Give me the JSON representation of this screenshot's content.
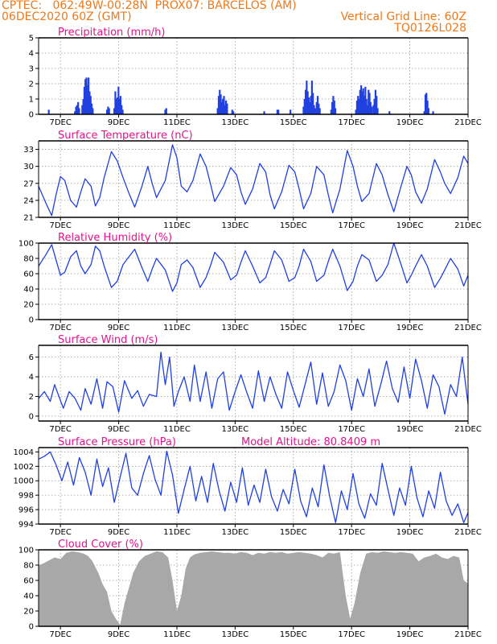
{
  "header": {
    "line1": "CPTEC:   062:49W-00:28N  PROX07: BARCELOS (AM)",
    "line2": "06DEC2020 60Z (GMT)",
    "grid_note": "Vertical Grid Line: 60Z",
    "code": "TQ0126L028"
  },
  "colors": {
    "header": "#f07818",
    "title": "#e0148c",
    "line": "#2040e0",
    "bar": "#2040e0",
    "cloud": "#a8a8a8"
  },
  "chart_data": [
    {
      "id": "precip",
      "type": "bar",
      "title": "Precipitation (mm/h)",
      "ylim": [
        0,
        5
      ],
      "yticks": [
        0,
        1,
        2,
        3,
        4,
        5
      ],
      "xlim": [
        6.25,
        21.0
      ],
      "xticks": [
        "7DEC",
        "9DEC",
        "11DEC",
        "13DEC",
        "15DEC",
        "17DEC",
        "19DEC",
        "21DEC"
      ],
      "bursts": [
        {
          "t": 6.6,
          "v": [
            0.3
          ]
        },
        {
          "t": 7.5,
          "v": [
            0.2,
            0.5,
            0.6,
            0.8,
            0.4
          ]
        },
        {
          "t": 7.75,
          "v": [
            0.6,
            1.0,
            1.8,
            2.3,
            2.4,
            1.9,
            2.4,
            1.5,
            1.2,
            0.7,
            0.4
          ]
        },
        {
          "t": 8.6,
          "v": [
            0.3,
            0.5,
            0.4
          ]
        },
        {
          "t": 8.85,
          "v": [
            0.4,
            1.5,
            1.0,
            1.1,
            1.8,
            1.0,
            1.2,
            0.6,
            0.3
          ]
        },
        {
          "t": 10.6,
          "v": [
            0.3,
            0.4
          ]
        },
        {
          "t": 12.4,
          "v": [
            0.4,
            1.2,
            1.6,
            1.3,
            0.8,
            1.0,
            1.2,
            0.6,
            0.9,
            0.7
          ]
        },
        {
          "t": 12.9,
          "v": [
            0.3,
            0.2
          ]
        },
        {
          "t": 14.0,
          "v": [
            0.2
          ]
        },
        {
          "t": 14.45,
          "v": [
            0.3,
            0.3
          ]
        },
        {
          "t": 14.9,
          "v": [
            0.3
          ]
        },
        {
          "t": 15.35,
          "v": [
            0.5,
            1.0,
            1.6,
            2.2,
            1.5,
            1.1,
            0.8,
            1.2,
            2.2,
            1.4,
            0.6,
            0.4
          ]
        },
        {
          "t": 15.8,
          "v": [
            0.8,
            1.2,
            0.7,
            0.4
          ]
        },
        {
          "t": 16.3,
          "v": [
            0.3,
            0.8,
            1.2,
            0.9,
            0.4
          ]
        },
        {
          "t": 17.15,
          "v": [
            0.3,
            0.9,
            1.2,
            1.0,
            1.6,
            1.9,
            1.5,
            1.7,
            1.2,
            1.8,
            1.0,
            0.6,
            1.6,
            1.4,
            0.8,
            0.5
          ]
        },
        {
          "t": 17.75,
          "v": [
            0.6,
            1.0,
            1.6,
            1.2,
            0.4
          ]
        },
        {
          "t": 18.3,
          "v": [
            0.2
          ]
        },
        {
          "t": 19.5,
          "v": [
            0.2,
            1.3,
            1.4,
            0.9,
            0.4
          ]
        },
        {
          "t": 19.8,
          "v": [
            0.2
          ]
        }
      ]
    },
    {
      "id": "temp",
      "type": "line",
      "title": "Surface Temperature (nC)",
      "ylim": [
        21,
        34.5
      ],
      "yticks": [
        21,
        24,
        27,
        30,
        33
      ],
      "xlim": [
        6.25,
        21.0
      ],
      "xticks": [
        "7DEC",
        "9DEC",
        "11DEC",
        "13DEC",
        "15DEC",
        "17DEC",
        "19DEC",
        "21DEC"
      ],
      "t": [
        6.25,
        6.5,
        6.7,
        6.85,
        7.0,
        7.15,
        7.35,
        7.55,
        7.7,
        7.85,
        8.05,
        8.2,
        8.35,
        8.5,
        8.75,
        8.95,
        9.15,
        9.35,
        9.55,
        9.8,
        10.0,
        10.15,
        10.3,
        10.6,
        10.85,
        11.0,
        11.15,
        11.35,
        11.55,
        11.8,
        12.0,
        12.15,
        12.3,
        12.6,
        12.85,
        13.05,
        13.2,
        13.35,
        13.6,
        13.85,
        14.05,
        14.2,
        14.35,
        14.6,
        14.85,
        15.05,
        15.2,
        15.35,
        15.6,
        15.8,
        16.05,
        16.2,
        16.35,
        16.6,
        16.85,
        17.05,
        17.2,
        17.35,
        17.6,
        17.85,
        18.05,
        18.25,
        18.45,
        18.7,
        18.9,
        19.05,
        19.2,
        19.4,
        19.6,
        19.85,
        20.05,
        20.2,
        20.4,
        20.65,
        20.85,
        21.0
      ],
      "v": [
        26.5,
        23.5,
        21.3,
        25.0,
        28.2,
        27.5,
        24.0,
        22.8,
        25.5,
        27.8,
        26.5,
        23.0,
        24.5,
        28.0,
        32.6,
        31.0,
        28.0,
        25.3,
        22.8,
        26.5,
        30.0,
        27.0,
        24.5,
        27.5,
        33.8,
        31.5,
        26.5,
        25.5,
        27.5,
        32.2,
        30.0,
        27.0,
        23.8,
        26.5,
        29.8,
        28.5,
        25.5,
        23.3,
        26.0,
        30.5,
        29.0,
        25.0,
        22.5,
        25.5,
        30.2,
        29.0,
        26.0,
        22.5,
        25.2,
        30.0,
        28.5,
        25.0,
        21.8,
        26.0,
        32.8,
        30.0,
        26.5,
        23.8,
        25.2,
        30.5,
        28.5,
        25.0,
        22.0,
        26.5,
        30.0,
        28.5,
        25.5,
        23.5,
        26.0,
        31.2,
        29.0,
        27.0,
        25.2,
        28.0,
        31.8,
        30.5
      ]
    },
    {
      "id": "rh",
      "type": "line",
      "title": "Relative Humidity (%)",
      "ylim": [
        0,
        100
      ],
      "yticks": [
        0,
        20,
        40,
        60,
        80,
        100
      ],
      "xlim": [
        6.25,
        21.0
      ],
      "xticks": [
        "7DEC",
        "9DEC",
        "11DEC",
        "13DEC",
        "15DEC",
        "17DEC",
        "19DEC",
        "21DEC"
      ],
      "t": [
        6.25,
        6.5,
        6.7,
        6.85,
        7.0,
        7.15,
        7.35,
        7.55,
        7.7,
        7.85,
        8.05,
        8.2,
        8.35,
        8.5,
        8.75,
        8.95,
        9.15,
        9.35,
        9.55,
        9.8,
        10.0,
        10.15,
        10.3,
        10.6,
        10.85,
        11.0,
        11.15,
        11.35,
        11.55,
        11.8,
        12.0,
        12.15,
        12.3,
        12.6,
        12.85,
        13.05,
        13.2,
        13.35,
        13.6,
        13.85,
        14.05,
        14.2,
        14.35,
        14.6,
        14.85,
        15.05,
        15.2,
        15.35,
        15.6,
        15.8,
        16.05,
        16.2,
        16.35,
        16.6,
        16.85,
        17.05,
        17.2,
        17.35,
        17.6,
        17.85,
        18.05,
        18.25,
        18.45,
        18.7,
        18.9,
        19.05,
        19.2,
        19.4,
        19.6,
        19.85,
        20.05,
        20.2,
        20.4,
        20.65,
        20.85,
        21.0
      ],
      "v": [
        70,
        85,
        98,
        78,
        58,
        62,
        82,
        90,
        70,
        60,
        72,
        96,
        90,
        70,
        42,
        50,
        72,
        82,
        92,
        68,
        50,
        66,
        80,
        65,
        37,
        48,
        72,
        78,
        68,
        42,
        55,
        70,
        88,
        75,
        52,
        58,
        75,
        90,
        70,
        48,
        55,
        72,
        90,
        78,
        50,
        55,
        70,
        92,
        76,
        50,
        58,
        76,
        92,
        70,
        38,
        50,
        70,
        85,
        78,
        50,
        58,
        72,
        100,
        72,
        48,
        58,
        70,
        85,
        70,
        42,
        54,
        65,
        80,
        66,
        44,
        58
      ]
    },
    {
      "id": "wind",
      "type": "line",
      "title": "Surface Wind (m/s)",
      "ylim": [
        -0.5,
        7.2
      ],
      "yticks": [
        0,
        2,
        4,
        6
      ],
      "xlim": [
        6.25,
        21.0
      ],
      "xticks": [
        "7DEC",
        "9DEC",
        "11DEC",
        "13DEC",
        "15DEC",
        "17DEC",
        "19DEC",
        "21DEC"
      ],
      "t": [
        6.25,
        6.45,
        6.65,
        6.8,
        6.95,
        7.1,
        7.3,
        7.5,
        7.7,
        7.85,
        8.05,
        8.25,
        8.45,
        8.6,
        8.8,
        9.0,
        9.2,
        9.45,
        9.65,
        9.85,
        10.05,
        10.3,
        10.45,
        10.6,
        10.75,
        10.9,
        11.05,
        11.25,
        11.45,
        11.6,
        11.8,
        12.0,
        12.2,
        12.4,
        12.6,
        12.8,
        13.0,
        13.2,
        13.4,
        13.6,
        13.8,
        14.0,
        14.2,
        14.4,
        14.6,
        14.8,
        15.0,
        15.2,
        15.4,
        15.6,
        15.8,
        16.0,
        16.2,
        16.4,
        16.6,
        16.8,
        17.0,
        17.2,
        17.4,
        17.6,
        17.8,
        18.0,
        18.2,
        18.4,
        18.6,
        18.8,
        19.0,
        19.2,
        19.4,
        19.6,
        19.8,
        20.0,
        20.2,
        20.4,
        20.6,
        20.8,
        21.0
      ],
      "v": [
        1.8,
        2.5,
        1.5,
        3.2,
        2.0,
        0.8,
        2.5,
        1.8,
        0.6,
        2.8,
        1.2,
        3.8,
        0.8,
        3.5,
        3.0,
        0.4,
        3.6,
        1.8,
        2.6,
        1.0,
        2.2,
        2.0,
        6.5,
        3.2,
        6.0,
        1.0,
        2.5,
        4.0,
        1.5,
        5.2,
        1.5,
        4.5,
        0.8,
        3.8,
        4.5,
        0.6,
        2.5,
        4.2,
        2.4,
        0.8,
        4.6,
        1.5,
        4.0,
        2.2,
        0.8,
        4.5,
        2.6,
        0.9,
        3.2,
        5.5,
        1.2,
        4.4,
        1.0,
        2.5,
        5.2,
        3.6,
        0.6,
        3.8,
        2.0,
        4.8,
        1.0,
        3.2,
        5.6,
        2.8,
        1.4,
        5.0,
        1.8,
        5.8,
        3.6,
        0.8,
        4.2,
        3.0,
        0.2,
        3.2,
        2.0,
        6.0,
        1.2
      ]
    },
    {
      "id": "press",
      "type": "line",
      "title": "Surface Pressure (hPa)",
      "extra_label": "Model Altitude: 80.8409 m",
      "ylim": [
        994,
        1004.6
      ],
      "yticks": [
        994,
        996,
        998,
        1000,
        1002,
        1004
      ],
      "xlim": [
        6.25,
        21.0
      ],
      "xticks": [
        "7DEC",
        "9DEC",
        "11DEC",
        "13DEC",
        "15DEC",
        "17DEC",
        "19DEC",
        "21DEC"
      ],
      "t": [
        6.25,
        6.45,
        6.65,
        6.85,
        7.05,
        7.25,
        7.45,
        7.65,
        7.85,
        8.05,
        8.25,
        8.45,
        8.65,
        8.85,
        9.05,
        9.25,
        9.45,
        9.65,
        9.85,
        10.05,
        10.25,
        10.45,
        10.65,
        10.85,
        11.05,
        11.25,
        11.45,
        11.65,
        11.85,
        12.05,
        12.25,
        12.45,
        12.65,
        12.85,
        13.05,
        13.25,
        13.45,
        13.65,
        13.85,
        14.05,
        14.25,
        14.45,
        14.65,
        14.85,
        15.05,
        15.25,
        15.45,
        15.65,
        15.85,
        16.05,
        16.25,
        16.45,
        16.65,
        16.85,
        17.05,
        17.25,
        17.45,
        17.65,
        17.85,
        18.05,
        18.25,
        18.45,
        18.65,
        18.85,
        19.05,
        19.25,
        19.45,
        19.65,
        19.85,
        20.05,
        20.25,
        20.45,
        20.65,
        20.85,
        21.0
      ],
      "v": [
        1003.0,
        1003.4,
        1004.0,
        1002.2,
        1000.0,
        1002.6,
        999.4,
        1003.2,
        1001.2,
        998.0,
        1003.0,
        999.2,
        1001.8,
        997.0,
        1000.5,
        1003.8,
        999.0,
        998.0,
        1001.0,
        1003.5,
        1000.2,
        998.0,
        1004.1,
        1000.8,
        995.5,
        998.8,
        1002.0,
        997.2,
        1000.6,
        997.0,
        1002.4,
        998.6,
        995.8,
        999.8,
        997.0,
        1001.8,
        996.6,
        999.4,
        997.0,
        1001.6,
        997.8,
        995.8,
        998.8,
        996.8,
        1001.6,
        997.2,
        995.0,
        999.0,
        996.4,
        1002.2,
        997.8,
        994.2,
        998.6,
        996.0,
        1001.0,
        996.8,
        994.8,
        998.2,
        996.6,
        1002.4,
        998.8,
        995.2,
        999.0,
        996.6,
        1002.0,
        997.6,
        995.0,
        998.6,
        996.2,
        1001.2,
        997.2,
        995.2,
        996.8,
        994.2,
        995.6
      ]
    },
    {
      "id": "cloud",
      "type": "area",
      "title": "Cloud Cover (%)",
      "ylim": [
        0,
        100
      ],
      "yticks": [
        0,
        20,
        40,
        60,
        80,
        100
      ],
      "xlim": [
        6.25,
        21.0
      ],
      "xticks": [
        "7DEC",
        "9DEC",
        "11DEC",
        "13DEC",
        "15DEC",
        "17DEC",
        "19DEC",
        "21DEC"
      ],
      "t": [
        6.25,
        6.4,
        6.6,
        6.8,
        7.0,
        7.2,
        7.4,
        7.6,
        7.8,
        7.95,
        8.1,
        8.3,
        8.45,
        8.6,
        8.75,
        8.9,
        9.05,
        9.2,
        9.35,
        9.5,
        9.7,
        9.9,
        10.1,
        10.3,
        10.5,
        10.7,
        10.85,
        11.0,
        11.15,
        11.3,
        11.45,
        11.6,
        11.8,
        12.0,
        12.2,
        12.4,
        12.6,
        12.8,
        13.0,
        13.2,
        13.4,
        13.6,
        13.8,
        14.0,
        14.2,
        14.4,
        14.6,
        14.8,
        15.0,
        15.2,
        15.4,
        15.6,
        15.8,
        16.0,
        16.2,
        16.4,
        16.6,
        16.8,
        16.95,
        17.1,
        17.3,
        17.5,
        17.7,
        17.9,
        18.1,
        18.3,
        18.5,
        18.7,
        18.9,
        19.1,
        19.3,
        19.5,
        19.7,
        19.9,
        20.1,
        20.3,
        20.5,
        20.7,
        20.85,
        21.0
      ],
      "v": [
        80,
        82,
        86,
        90,
        88,
        96,
        98,
        97,
        95,
        92,
        85,
        70,
        55,
        45,
        20,
        10,
        2,
        30,
        50,
        70,
        85,
        92,
        95,
        98,
        97,
        90,
        60,
        20,
        40,
        75,
        90,
        94,
        96,
        97,
        98,
        97,
        96,
        96,
        95,
        97,
        96,
        93,
        96,
        95,
        97,
        96,
        97,
        95,
        96,
        97,
        96,
        95,
        93,
        90,
        96,
        95,
        97,
        40,
        10,
        30,
        70,
        95,
        97,
        96,
        98,
        97,
        96,
        97,
        96,
        95,
        85,
        90,
        92,
        95,
        90,
        88,
        92,
        90,
        60,
        56
      ]
    }
  ]
}
